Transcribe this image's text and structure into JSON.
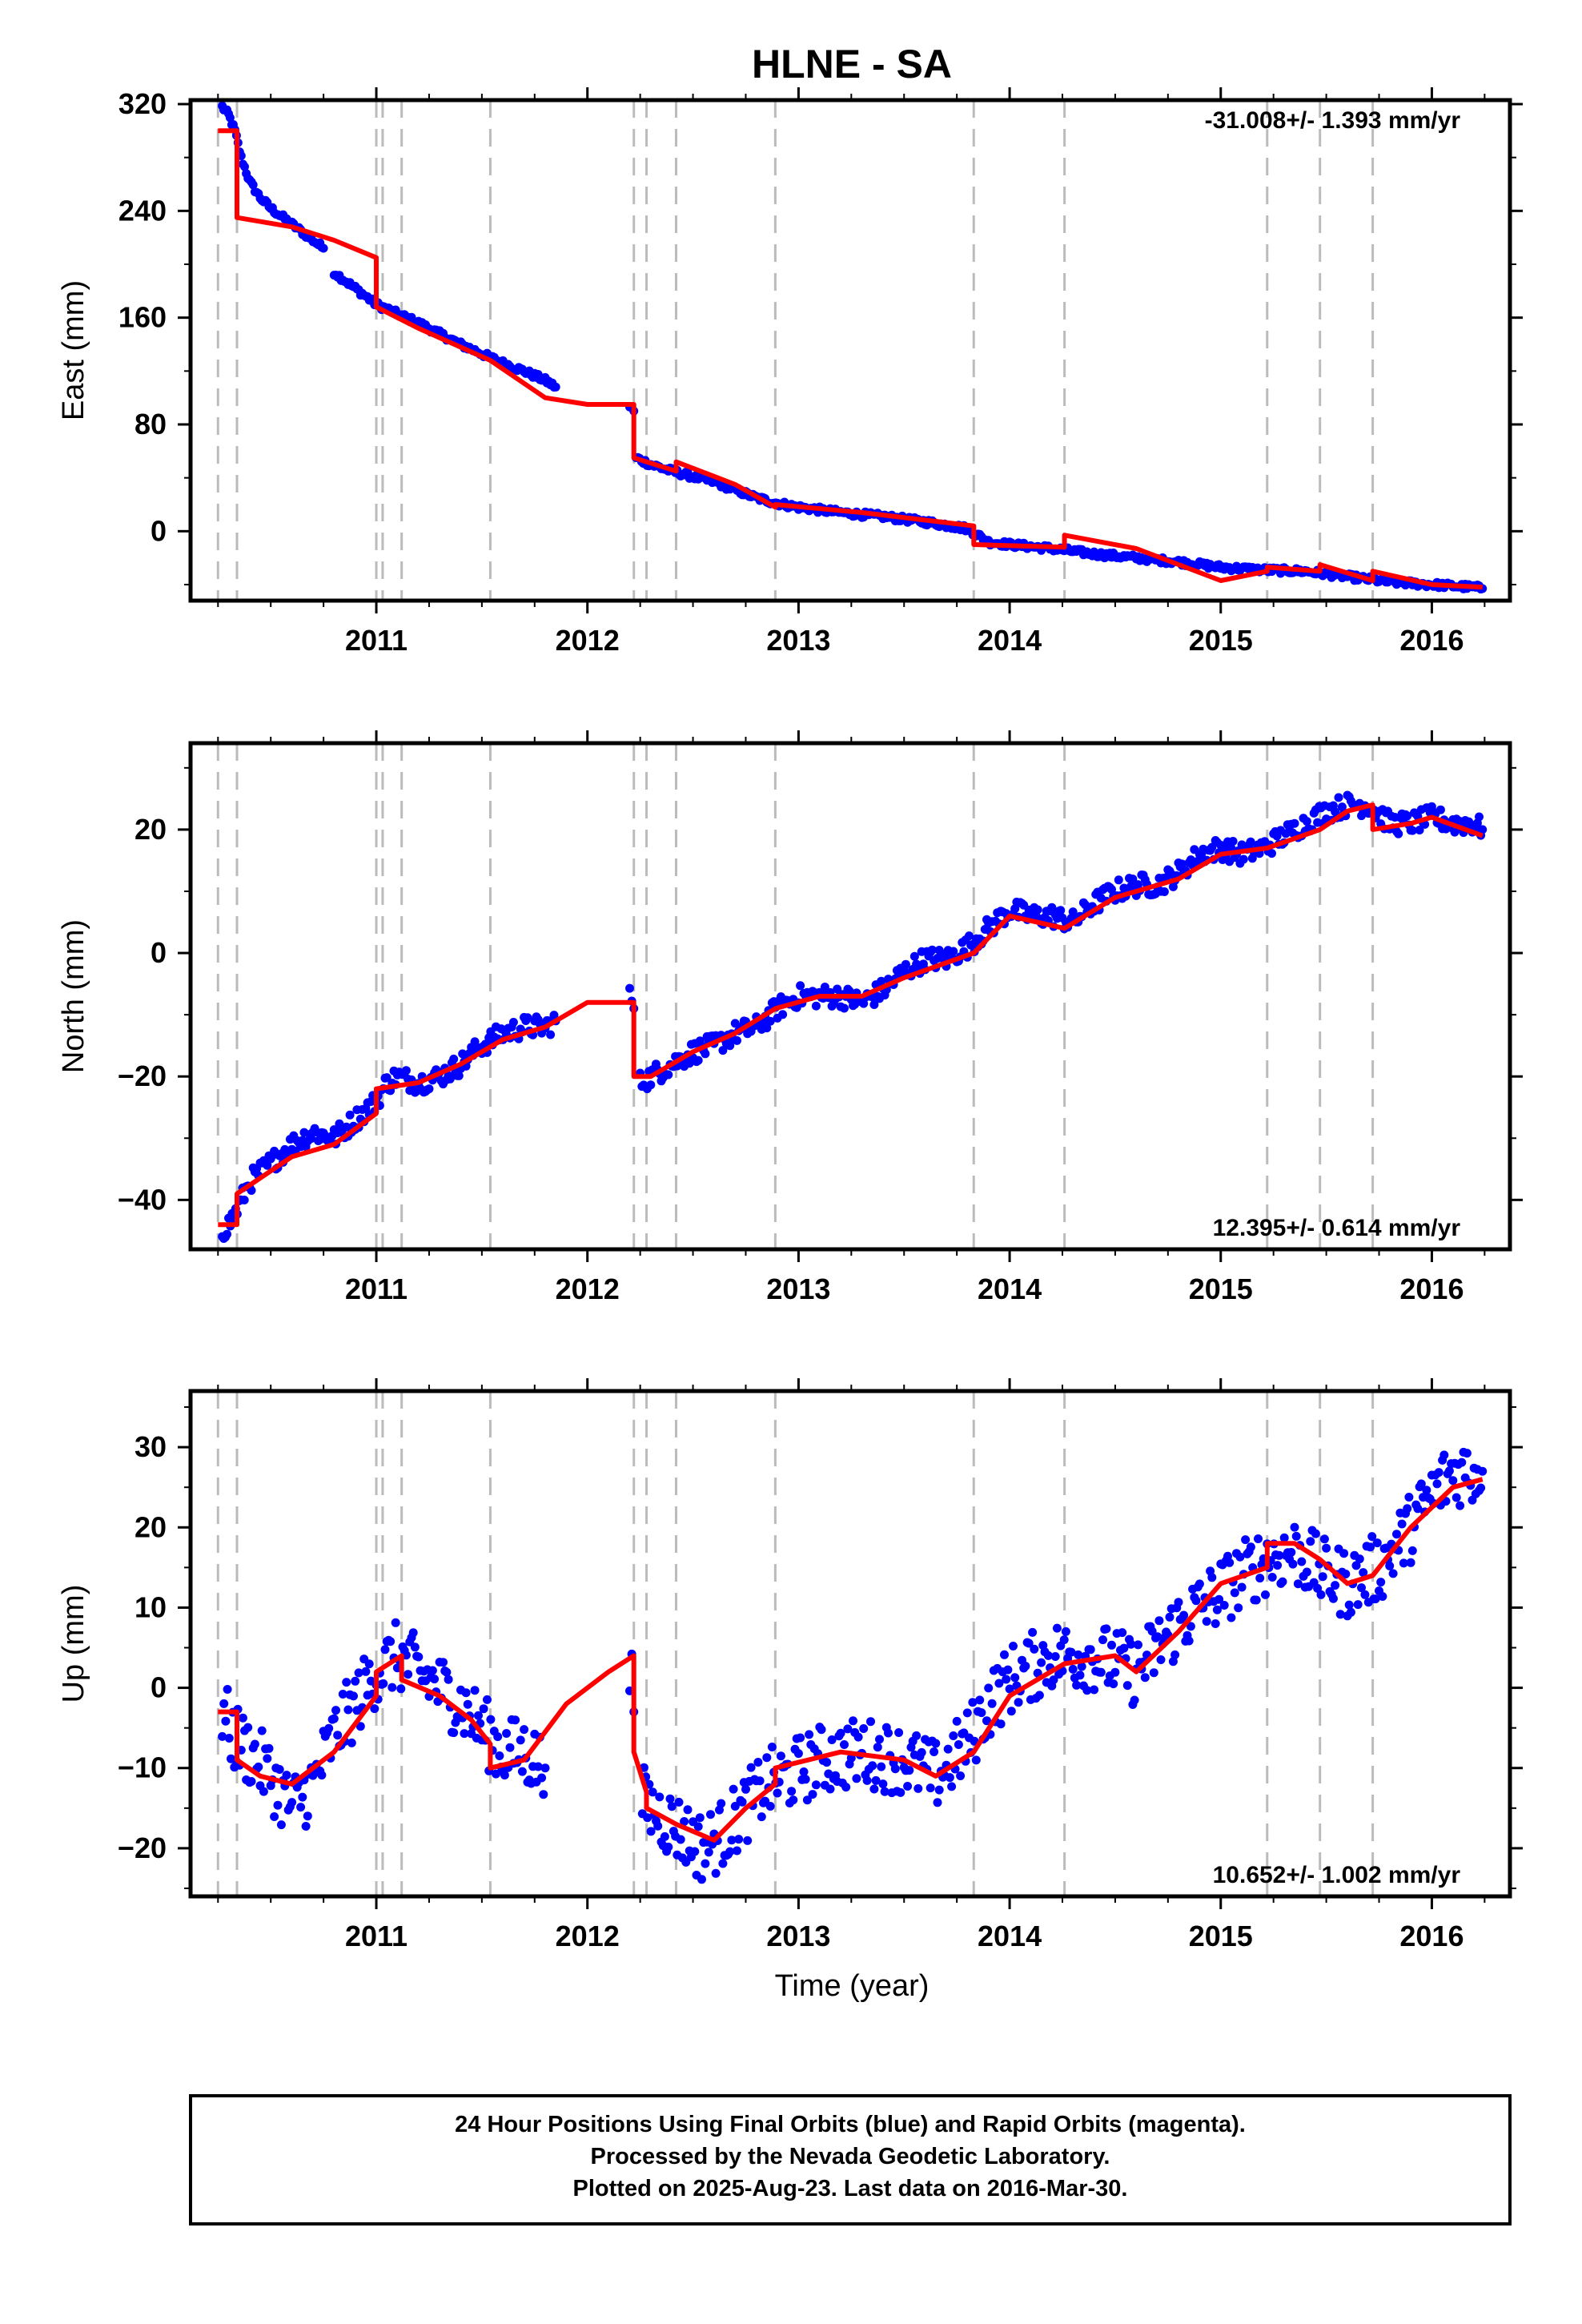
{
  "title": "HLNE - SA",
  "colors": {
    "data_points": "#0000ff",
    "model_line": "#ff0000",
    "event_lines": "#bbbbbb",
    "frame": "#000000"
  },
  "x_axis": {
    "label": "Time (year)",
    "range": [
      2010.12,
      2016.37
    ],
    "ticks": [
      "2011",
      "2012",
      "2013",
      "2014",
      "2015",
      "2016"
    ]
  },
  "event_lines_years": [
    2010.25,
    2010.34,
    2011.0,
    2011.03,
    2011.12,
    2011.54,
    2012.22,
    2012.28,
    2012.42,
    2012.89,
    2013.83,
    2014.26,
    2015.22,
    2015.47,
    2015.72
  ],
  "caption": {
    "line1": "24 Hour Positions Using Final Orbits (blue) and Rapid Orbits (magenta).",
    "line2": "Processed by the Nevada Geodetic Laboratory.",
    "line3": "Plotted on 2025-Aug-23. Last data on 2016-Mar-30."
  },
  "chart_data": [
    {
      "type": "scatter",
      "component": "East",
      "ylabel": "East (mm)",
      "rate_text": "-31.008+/- 1.393 mm/yr",
      "rate_position": "top-right",
      "ylim": [
        -52,
        323
      ],
      "yticks": [
        320,
        240,
        160,
        80,
        0
      ],
      "x_ticks": [
        "2011",
        "2012",
        "2013",
        "2014",
        "2015",
        "2016"
      ],
      "data_segments": [
        {
          "x": [
            2010.27,
            2010.3,
            2010.33,
            2010.36,
            2010.4,
            2010.45,
            2010.5,
            2010.55,
            2010.6,
            2010.65,
            2010.7,
            2010.75
          ],
          "y": [
            318,
            312,
            300,
            280,
            262,
            250,
            242,
            236,
            230,
            224,
            218,
            212
          ]
        },
        {
          "x": [
            2010.8,
            2010.85,
            2010.9,
            2010.95,
            2011.0,
            2011.1,
            2011.2,
            2011.3,
            2011.4,
            2011.5,
            2011.6,
            2011.7,
            2011.8,
            2011.85
          ],
          "y": [
            194,
            188,
            182,
            176,
            170,
            163,
            156,
            148,
            140,
            133,
            126,
            120,
            113,
            108
          ]
        },
        {
          "x": [
            2012.2,
            2012.22
          ],
          "y": [
            93,
            90
          ]
        },
        {
          "x": [
            2012.23,
            2012.3,
            2012.4,
            2012.5,
            2012.6,
            2012.7,
            2012.8,
            2012.9,
            2013.0,
            2013.2,
            2013.4,
            2013.6,
            2013.8,
            2013.9,
            2014.0,
            2014.2,
            2014.4,
            2014.6,
            2014.8,
            2015.0,
            2015.2,
            2015.4,
            2015.6,
            2015.8,
            2016.0,
            2016.1,
            2016.2,
            2016.24
          ],
          "y": [
            55,
            50,
            45,
            41,
            37,
            31,
            25,
            21,
            18,
            14,
            11,
            7,
            2,
            -8,
            -10,
            -13,
            -17,
            -20,
            -23,
            -27,
            -29,
            -30,
            -34,
            -38,
            -40,
            -41,
            -42,
            -43
          ]
        }
      ],
      "model_x": [
        2010.25,
        2010.34,
        2010.34,
        2010.6,
        2010.8,
        2011.0,
        2011.0,
        2011.2,
        2011.54,
        2011.8,
        2012.0,
        2012.22,
        2012.22,
        2012.42,
        2012.42,
        2012.7,
        2012.89,
        2012.89,
        2013.3,
        2013.83,
        2013.83,
        2014.26,
        2014.26,
        2014.6,
        2015.0,
        2015.22,
        2015.22,
        2015.47,
        2015.47,
        2015.72,
        2015.72,
        2016.0,
        2016.24
      ],
      "model_y": [
        300,
        300,
        235,
        228,
        218,
        205,
        168,
        152,
        128,
        100,
        95,
        95,
        55,
        45,
        52,
        35,
        18,
        20,
        14,
        4,
        -10,
        -12,
        -3,
        -13,
        -37,
        -30,
        -27,
        -30,
        -25,
        -37,
        -30,
        -40,
        -42
      ]
    },
    {
      "type": "scatter",
      "component": "North",
      "ylabel": "North (mm)",
      "rate_text": "12.395+/- 0.614 mm/yr",
      "rate_position": "bottom-right",
      "ylim": [
        -48,
        34
      ],
      "yticks": [
        20,
        0,
        -20,
        -40
      ],
      "x_ticks": [
        "2011",
        "2012",
        "2013",
        "2014",
        "2015",
        "2016"
      ],
      "data_segments": [
        {
          "x": [
            2010.27,
            2010.3,
            2010.35,
            2010.4,
            2010.5,
            2010.6,
            2010.7,
            2010.8,
            2010.9,
            2011.0,
            2011.05,
            2011.1,
            2011.2,
            2011.3,
            2011.4,
            2011.5,
            2011.6,
            2011.7,
            2011.8,
            2011.85
          ],
          "y": [
            -45,
            -44,
            -41,
            -37,
            -34,
            -31,
            -29,
            -30,
            -27,
            -24,
            -21,
            -20,
            -21,
            -20,
            -18,
            -15,
            -13,
            -12,
            -12,
            -11
          ]
        },
        {
          "x": [
            2012.2,
            2012.22
          ],
          "y": [
            -6,
            -9
          ]
        },
        {
          "x": [
            2012.25,
            2012.3,
            2012.4,
            2012.5,
            2012.6,
            2012.7,
            2012.8,
            2012.9,
            2013.0,
            2013.1,
            2013.2,
            2013.3,
            2013.4,
            2013.5,
            2013.6,
            2013.7,
            2013.8,
            2013.9,
            2014.0,
            2014.1,
            2014.2,
            2014.3,
            2014.4,
            2014.5,
            2014.6,
            2014.7,
            2014.8,
            2014.9,
            2015.0,
            2015.1,
            2015.2,
            2015.3,
            2015.4,
            2015.5,
            2015.6,
            2015.7,
            2015.8,
            2015.9,
            2016.0,
            2016.1,
            2016.2,
            2016.24
          ],
          "y": [
            -21,
            -20,
            -18,
            -16,
            -15,
            -13,
            -12,
            -9,
            -7,
            -7,
            -7,
            -8,
            -6,
            -3,
            -1,
            -1,
            1,
            4,
            7,
            6,
            6,
            5,
            8,
            10,
            11,
            11,
            13,
            16,
            17,
            16,
            17,
            19,
            21,
            23,
            24,
            24,
            21,
            21,
            22,
            21,
            21,
            20
          ]
        }
      ],
      "model_x": [
        2010.25,
        2010.34,
        2010.34,
        2010.6,
        2010.8,
        2011.0,
        2011.0,
        2011.2,
        2011.4,
        2011.6,
        2011.8,
        2012.0,
        2012.22,
        2012.22,
        2012.3,
        2012.5,
        2012.7,
        2012.89,
        2013.1,
        2013.3,
        2013.5,
        2013.83,
        2014.0,
        2014.26,
        2014.5,
        2014.8,
        2015.0,
        2015.22,
        2015.47,
        2015.6,
        2015.72,
        2015.72,
        2015.9,
        2016.0,
        2016.24
      ],
      "model_y": [
        -44,
        -44,
        -39,
        -33,
        -31,
        -26,
        -22,
        -21,
        -18,
        -14,
        -12,
        -8,
        -8,
        -20,
        -20,
        -16,
        -13,
        -9,
        -7,
        -7,
        -4,
        0,
        6,
        4,
        9,
        12,
        16,
        17,
        20,
        23,
        24,
        20,
        21,
        22,
        19
      ]
    },
    {
      "type": "scatter",
      "component": "Up",
      "ylabel": "Up (mm)",
      "rate_text": "10.652+/- 1.002 mm/yr",
      "rate_position": "bottom-right",
      "ylim": [
        -26,
        37
      ],
      "yticks": [
        30,
        20,
        10,
        0,
        -10,
        -20
      ],
      "x_ticks": [
        "2011",
        "2012",
        "2013",
        "2014",
        "2015",
        "2016"
      ],
      "data_segments": [
        {
          "x": [
            2010.27,
            2010.32,
            2010.4,
            2010.5,
            2010.6,
            2010.7,
            2010.8,
            2010.9,
            2011.0,
            2011.1,
            2011.2,
            2011.3,
            2011.4,
            2011.5,
            2011.6,
            2011.7,
            2011.8
          ],
          "y": [
            -3,
            -6,
            -8,
            -11,
            -15,
            -12,
            -6,
            -2,
            2,
            4,
            2,
            0,
            -2,
            -5,
            -8,
            -8,
            -10
          ]
        },
        {
          "x": [
            2012.2,
            2012.22
          ],
          "y": [
            4,
            -3
          ]
        },
        {
          "x": [
            2012.26,
            2012.35,
            2012.45,
            2012.55,
            2012.65,
            2012.75,
            2012.85,
            2012.95,
            2013.1,
            2013.3,
            2013.5,
            2013.65,
            2013.8,
            2013.9,
            2014.0,
            2014.2,
            2014.4,
            2014.6,
            2014.8,
            2015.0,
            2015.1,
            2015.22,
            2015.35,
            2015.5,
            2015.6,
            2015.75,
            2015.9,
            2016.0,
            2016.1,
            2016.2,
            2016.24
          ],
          "y": [
            -14,
            -16,
            -18,
            -20,
            -18,
            -15,
            -12,
            -11,
            -9,
            -8,
            -9,
            -11,
            -7,
            -2,
            1,
            4,
            4,
            2,
            8,
            12,
            14,
            16,
            17,
            14,
            13,
            15,
            20,
            24,
            27,
            27,
            27
          ]
        }
      ],
      "model_x": [
        2010.25,
        2010.34,
        2010.34,
        2010.45,
        2010.6,
        2010.8,
        2011.0,
        2011.0,
        2011.12,
        2011.12,
        2011.3,
        2011.45,
        2011.54,
        2011.54,
        2011.7,
        2011.9,
        2012.1,
        2012.22,
        2012.22,
        2012.28,
        2012.28,
        2012.42,
        2012.6,
        2012.75,
        2012.89,
        2012.89,
        2013.2,
        2013.5,
        2013.65,
        2013.83,
        2014.0,
        2014.26,
        2014.5,
        2014.6,
        2014.8,
        2015.0,
        2015.22,
        2015.22,
        2015.35,
        2015.47,
        2015.6,
        2015.72,
        2015.9,
        2016.1,
        2016.24
      ],
      "model_y": [
        -3,
        -3,
        -9,
        -11,
        -12,
        -8,
        -1,
        2,
        4,
        1,
        -1,
        -4,
        -7,
        -10,
        -9,
        -2,
        2,
        4,
        -8,
        -13,
        -15,
        -17,
        -19,
        -15,
        -12,
        -10,
        -8,
        -9,
        -11,
        -8,
        -1,
        3,
        4,
        2,
        7,
        13,
        15,
        18,
        18,
        16,
        13,
        14,
        20,
        25,
        26
      ]
    }
  ]
}
